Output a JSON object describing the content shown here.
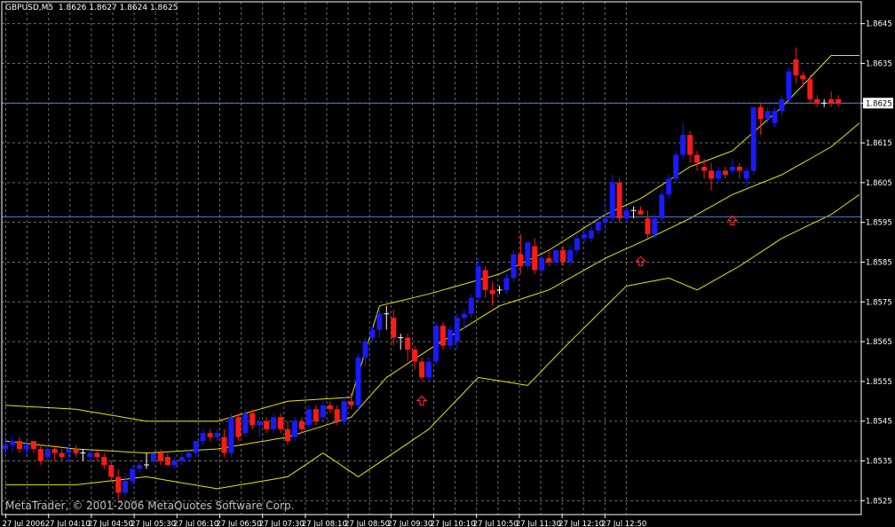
{
  "header": {
    "symbol": "GBPUSD,M5",
    "ohlc": "1.8626 1.8627 1.8624 1.8625"
  },
  "footer": {
    "copyright": "MetaTrader, © 2001-2006 MetaQuotes Software Corp."
  },
  "colors": {
    "background": "#000000",
    "grid": "#6b6b6b",
    "axis": "#ffffff",
    "bull_candle": "#1a1aff",
    "bear_candle": "#ff1a1a",
    "doji": "#ffffff",
    "bands": "#e6e600",
    "horizontal_line": "#4a7fd0",
    "arrow": "#ff3030",
    "price_label_bg": "#ffffff",
    "price_label_text": "#000000"
  },
  "chart_data": {
    "type": "candlestick",
    "symbol": "GBPUSD",
    "timeframe": "M5",
    "ylim": [
      1.85215,
      1.86505
    ],
    "y_ticks": [
      "1.8645",
      "1.8635",
      "1.8625",
      "1.8615",
      "1.8605",
      "1.8595",
      "1.8585",
      "1.8575",
      "1.8565",
      "1.8555",
      "1.8545",
      "1.8535",
      "1.8525"
    ],
    "x_ticks": [
      "27 Jul 2006",
      "27 Jul 04:10",
      "27 Jul 04:50",
      "27 Jul 05:30",
      "27 Jul 06:10",
      "27 Jul 06:50",
      "27 Jul 07:30",
      "27 Jul 08:10",
      "27 Jul 08:50",
      "27 Jul 09:30",
      "27 Jul 10:10",
      "27 Jul 10:50",
      "27 Jul 11:30",
      "27 Jul 12:10",
      "27 Jul 12:50"
    ],
    "current_price": "1.8625",
    "horizontal_lines": [
      1.8625,
      1.85964
    ],
    "grid": true,
    "candles": [
      [
        1.8538,
        1.8541,
        1.8536,
        1.8539
      ],
      [
        1.8539,
        1.8541,
        1.8537,
        1.854
      ],
      [
        1.854,
        1.8541,
        1.8537,
        1.8538
      ],
      [
        1.8538,
        1.854,
        1.8536,
        1.8539
      ],
      [
        1.854,
        1.854,
        1.8537,
        1.8538
      ],
      [
        1.8538,
        1.8539,
        1.8534,
        1.8535
      ],
      [
        1.8536,
        1.8539,
        1.8535,
        1.8538
      ],
      [
        1.8538,
        1.8539,
        1.8535,
        1.8537
      ],
      [
        1.8537,
        1.8538,
        1.8535,
        1.8536
      ],
      [
        1.8537,
        1.8539,
        1.8535,
        1.8538
      ],
      [
        1.8538,
        1.8539,
        1.8536,
        1.8537
      ],
      [
        1.8537,
        1.8538,
        1.8535,
        1.8537
      ],
      [
        1.8536,
        1.8538,
        1.8535,
        1.8537
      ],
      [
        1.8537,
        1.8538,
        1.8535,
        1.8536
      ],
      [
        1.8536,
        1.8537,
        1.8533,
        1.8534
      ],
      [
        1.8534,
        1.8535,
        1.853,
        1.8531
      ],
      [
        1.8531,
        1.8533,
        1.8525,
        1.8527
      ],
      [
        1.8527,
        1.8532,
        1.8526,
        1.853
      ],
      [
        1.853,
        1.8534,
        1.8529,
        1.8533
      ],
      [
        1.8533,
        1.8535,
        1.8532,
        1.8534
      ],
      [
        1.8534,
        1.8537,
        1.8533,
        1.8534
      ],
      [
        1.8535,
        1.8537,
        1.8534,
        1.8537
      ],
      [
        1.8537,
        1.8538,
        1.8534,
        1.8535
      ],
      [
        1.8536,
        1.8537,
        1.8534,
        1.8534
      ],
      [
        1.8534,
        1.8536,
        1.8533,
        1.8535
      ],
      [
        1.8535,
        1.8537,
        1.8534,
        1.8536
      ],
      [
        1.8536,
        1.8538,
        1.8535,
        1.8537
      ],
      [
        1.8537,
        1.854,
        1.8536,
        1.854
      ],
      [
        1.854,
        1.8543,
        1.8539,
        1.8542
      ],
      [
        1.8542,
        1.8543,
        1.854,
        1.8541
      ],
      [
        1.8541,
        1.8543,
        1.854,
        1.8542
      ],
      [
        1.8541,
        1.8543,
        1.8536,
        1.8537
      ],
      [
        1.8537,
        1.8547,
        1.8536,
        1.8546
      ],
      [
        1.8546,
        1.8547,
        1.854,
        1.8541
      ],
      [
        1.8542,
        1.8548,
        1.8541,
        1.8547
      ],
      [
        1.8547,
        1.8548,
        1.8543,
        1.8544
      ],
      [
        1.8544,
        1.8546,
        1.8541,
        1.8545
      ],
      [
        1.8545,
        1.8546,
        1.8542,
        1.8543
      ],
      [
        1.8543,
        1.8547,
        1.8542,
        1.8546
      ],
      [
        1.8546,
        1.8547,
        1.8542,
        1.8543
      ],
      [
        1.8543,
        1.8545,
        1.8539,
        1.854
      ],
      [
        1.8541,
        1.8546,
        1.854,
        1.8545
      ],
      [
        1.8545,
        1.8546,
        1.8542,
        1.8543
      ],
      [
        1.8544,
        1.8549,
        1.8543,
        1.8548
      ],
      [
        1.8548,
        1.8549,
        1.8544,
        1.8545
      ],
      [
        1.8546,
        1.855,
        1.8545,
        1.8549
      ],
      [
        1.8549,
        1.855,
        1.8547,
        1.8548
      ],
      [
        1.8548,
        1.8549,
        1.8544,
        1.8545
      ],
      [
        1.8545,
        1.8551,
        1.8544,
        1.855
      ],
      [
        1.855,
        1.8552,
        1.8548,
        1.8549
      ],
      [
        1.8549,
        1.8562,
        1.8548,
        1.8561
      ],
      [
        1.8561,
        1.8566,
        1.8559,
        1.8565
      ],
      [
        1.8566,
        1.8569,
        1.8565,
        1.8568
      ],
      [
        1.8568,
        1.8573,
        1.8566,
        1.8572
      ],
      [
        1.8572,
        1.8574,
        1.8568,
        1.8572
      ],
      [
        1.8571,
        1.8573,
        1.8564,
        1.8566
      ],
      [
        1.8566,
        1.8567,
        1.8563,
        1.8566
      ],
      [
        1.8566,
        1.8567,
        1.856,
        1.8563
      ],
      [
        1.8563,
        1.8564,
        1.8558,
        1.856
      ],
      [
        1.856,
        1.8561,
        1.8555,
        1.8556
      ],
      [
        1.8556,
        1.8561,
        1.8555,
        1.856
      ],
      [
        1.856,
        1.857,
        1.8559,
        1.8569
      ],
      [
        1.8569,
        1.857,
        1.8563,
        1.8564
      ],
      [
        1.8564,
        1.8569,
        1.8563,
        1.8568
      ],
      [
        1.8565,
        1.8572,
        1.8563,
        1.8571
      ],
      [
        1.8571,
        1.8573,
        1.8568,
        1.8572
      ],
      [
        1.8572,
        1.8577,
        1.8571,
        1.8576
      ],
      [
        1.8576,
        1.8586,
        1.8575,
        1.8584
      ],
      [
        1.8583,
        1.8584,
        1.8576,
        1.8578
      ],
      [
        1.8578,
        1.858,
        1.8574,
        1.8577
      ],
      [
        1.8578,
        1.8579,
        1.8577,
        1.8578
      ],
      [
        1.8578,
        1.8582,
        1.8577,
        1.8581
      ],
      [
        1.8581,
        1.8588,
        1.858,
        1.8587
      ],
      [
        1.8587,
        1.8592,
        1.8582,
        1.8584
      ],
      [
        1.8584,
        1.859,
        1.8583,
        1.859
      ],
      [
        1.8589,
        1.8591,
        1.8582,
        1.8583
      ],
      [
        1.8583,
        1.8587,
        1.8582,
        1.8586
      ],
      [
        1.8586,
        1.8588,
        1.8584,
        1.8585
      ],
      [
        1.8585,
        1.8588,
        1.8584,
        1.8588
      ],
      [
        1.8588,
        1.8589,
        1.8584,
        1.8585
      ],
      [
        1.8585,
        1.8589,
        1.8584,
        1.8588
      ],
      [
        1.8588,
        1.8592,
        1.8587,
        1.8591
      ],
      [
        1.8591,
        1.8593,
        1.859,
        1.8592
      ],
      [
        1.8591,
        1.8595,
        1.859,
        1.8593
      ],
      [
        1.8593,
        1.8596,
        1.8592,
        1.8595
      ],
      [
        1.8595,
        1.86,
        1.8593,
        1.8596
      ],
      [
        1.8596,
        1.8607,
        1.8595,
        1.8605
      ],
      [
        1.8605,
        1.8606,
        1.8595,
        1.8596
      ],
      [
        1.8596,
        1.8599,
        1.8595,
        1.8598
      ],
      [
        1.8598,
        1.8599,
        1.8596,
        1.8598
      ],
      [
        1.8598,
        1.8599,
        1.8597,
        1.8597
      ],
      [
        1.8596,
        1.8598,
        1.8591,
        1.8592
      ],
      [
        1.8592,
        1.8597,
        1.8591,
        1.8596
      ],
      [
        1.8596,
        1.8603,
        1.8595,
        1.8602
      ],
      [
        1.8602,
        1.8607,
        1.8601,
        1.8606
      ],
      [
        1.8606,
        1.8613,
        1.8605,
        1.8612
      ],
      [
        1.8612,
        1.862,
        1.8611,
        1.8617
      ],
      [
        1.8617,
        1.8618,
        1.861,
        1.8612
      ],
      [
        1.8612,
        1.8613,
        1.8608,
        1.861
      ],
      [
        1.8609,
        1.8611,
        1.8606,
        1.8608
      ],
      [
        1.8608,
        1.861,
        1.8603,
        1.8606
      ],
      [
        1.8606,
        1.8609,
        1.8605,
        1.8608
      ],
      [
        1.8608,
        1.8609,
        1.8606,
        1.8607
      ],
      [
        1.8608,
        1.8611,
        1.8607,
        1.8609
      ],
      [
        1.8609,
        1.861,
        1.8606,
        1.8608
      ],
      [
        1.8606,
        1.8609,
        1.8604,
        1.8608
      ],
      [
        1.8608,
        1.8624,
        1.8607,
        1.8624
      ],
      [
        1.8624,
        1.8625,
        1.8617,
        1.8621
      ],
      [
        1.8621,
        1.8624,
        1.862,
        1.8623
      ],
      [
        1.862,
        1.8624,
        1.8619,
        1.8623
      ],
      [
        1.8623,
        1.8627,
        1.8622,
        1.8626
      ],
      [
        1.8626,
        1.8634,
        1.8625,
        1.8633
      ],
      [
        1.8636,
        1.8639,
        1.863,
        1.8632
      ],
      [
        1.8632,
        1.8633,
        1.8629,
        1.8631
      ],
      [
        1.8631,
        1.8632,
        1.8625,
        1.8626
      ],
      [
        1.8626,
        1.8627,
        1.8624,
        1.8625
      ],
      [
        1.8625,
        1.8626,
        1.8624,
        1.8625
      ],
      [
        1.8626,
        1.8628,
        1.8624,
        1.8625
      ],
      [
        1.8626,
        1.8627,
        1.8624,
        1.8625
      ]
    ],
    "bollinger_upper": [
      [
        0,
        1.8549
      ],
      [
        10,
        1.8548
      ],
      [
        20,
        1.8545
      ],
      [
        30,
        1.8545
      ],
      [
        40,
        1.855
      ],
      [
        49,
        1.8551
      ],
      [
        53,
        1.8574
      ],
      [
        60,
        1.8577
      ],
      [
        70,
        1.8582
      ],
      [
        77,
        1.8588
      ],
      [
        85,
        1.8597
      ],
      [
        90,
        1.8601
      ],
      [
        97,
        1.8609
      ],
      [
        103,
        1.8613
      ],
      [
        110,
        1.8624
      ],
      [
        117,
        1.8637
      ],
      [
        121,
        1.8637
      ]
    ],
    "bollinger_middle": [
      [
        0,
        1.854
      ],
      [
        10,
        1.8538
      ],
      [
        20,
        1.8537
      ],
      [
        30,
        1.8538
      ],
      [
        40,
        1.8541
      ],
      [
        49,
        1.8546
      ],
      [
        54,
        1.8556
      ],
      [
        60,
        1.8563
      ],
      [
        70,
        1.8574
      ],
      [
        77,
        1.8578
      ],
      [
        85,
        1.8586
      ],
      [
        90,
        1.859
      ],
      [
        97,
        1.8596
      ],
      [
        103,
        1.8602
      ],
      [
        110,
        1.8607
      ],
      [
        117,
        1.8614
      ],
      [
        121,
        1.862
      ]
    ],
    "bollinger_lower": [
      [
        0,
        1.8529
      ],
      [
        10,
        1.8529
      ],
      [
        20,
        1.8531
      ],
      [
        30,
        1.8528
      ],
      [
        40,
        1.8531
      ],
      [
        45,
        1.8537
      ],
      [
        50,
        1.8531
      ],
      [
        60,
        1.8543
      ],
      [
        67,
        1.8556
      ],
      [
        74,
        1.8554
      ],
      [
        80,
        1.8565
      ],
      [
        88,
        1.8579
      ],
      [
        94,
        1.8581
      ],
      [
        98,
        1.8578
      ],
      [
        104,
        1.8584
      ],
      [
        110,
        1.8591
      ],
      [
        117,
        1.8597
      ],
      [
        121,
        1.8602
      ]
    ],
    "arrows": [
      {
        "index": 59,
        "price": 1.85513
      },
      {
        "index": 90,
        "price": 1.85864
      },
      {
        "index": 103,
        "price": 1.85966
      }
    ]
  }
}
